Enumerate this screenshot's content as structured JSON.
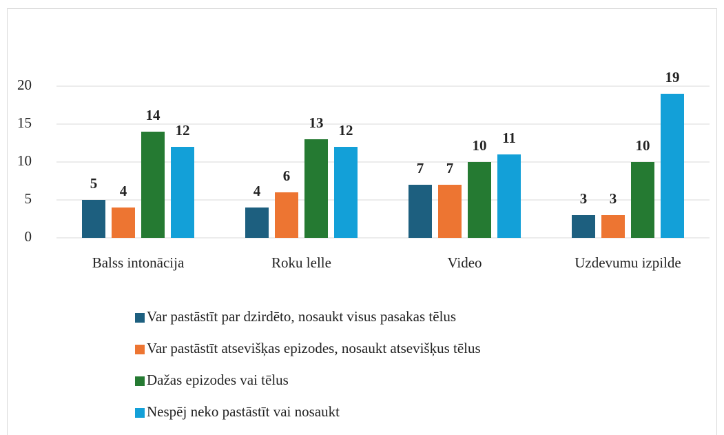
{
  "chart_data": {
    "type": "bar",
    "categories": [
      "Balss intonācija",
      "Roku lelle",
      "Video",
      "Uzdevumu izpilde"
    ],
    "series": [
      {
        "name": "Var pastāstīt par dzirdēto, nosaukt visus pasakas tēlus",
        "color": "#1d5f7f",
        "values": [
          5,
          4,
          7,
          3
        ]
      },
      {
        "name": "Var pastāstīt atsevišķas epizodes, nosaukt atsevišķus tēlus",
        "color": "#ed7532",
        "values": [
          4,
          6,
          7,
          3
        ]
      },
      {
        "name": "Dažas epizodes vai tēlus",
        "color": "#257a32",
        "values": [
          14,
          13,
          10,
          10
        ]
      },
      {
        "name": "Nespēj neko pastāstīt vai nosaukt",
        "color": "#13a0d8",
        "values": [
          12,
          12,
          11,
          19
        ]
      }
    ],
    "ylim": [
      0,
      20
    ],
    "yticks": [
      0,
      5,
      10,
      15,
      20
    ],
    "grid": true
  }
}
